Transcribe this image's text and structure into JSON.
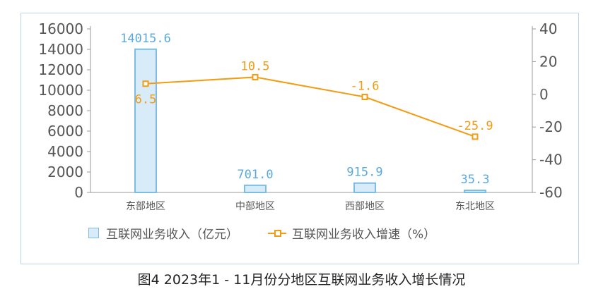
{
  "chart_data": {
    "type": "bar+line",
    "categories": [
      "东部地区",
      "中部地区",
      "西部地区",
      "东北地区"
    ],
    "series": [
      {
        "name": "互联网业务收入（亿元）",
        "type": "bar",
        "axis": "left",
        "values": [
          14015.6,
          701.0,
          915.9,
          35.3
        ],
        "labels": [
          "14015.6",
          "701.0",
          "915.9",
          "35.3"
        ]
      },
      {
        "name": "互联网业务收入增速（%）",
        "type": "line",
        "axis": "right",
        "values": [
          6.5,
          10.5,
          -1.6,
          -25.9
        ],
        "labels": [
          "6.5",
          "10.5",
          "-1.6",
          "-25.9"
        ]
      }
    ],
    "y_left": {
      "lim": [
        0,
        16000
      ],
      "ticks": [
        "0",
        "2000",
        "4000",
        "6000",
        "8000",
        "10000",
        "12000",
        "14000",
        "16000"
      ]
    },
    "y_right": {
      "lim": [
        -60,
        40
      ],
      "ticks": [
        "-60",
        "-40",
        "-20",
        "0",
        "20",
        "40"
      ]
    },
    "legend": "bottom",
    "grid": false,
    "colors": {
      "bar_fill": "#d7ebf8",
      "bar_stroke": "#7cbde6",
      "bar_label": "#5aa9dc",
      "line": "#f39c12",
      "axis_text": "#555555"
    }
  },
  "caption": "图4   2023年1 - 11月份分地区互联网业务收入增长情况"
}
